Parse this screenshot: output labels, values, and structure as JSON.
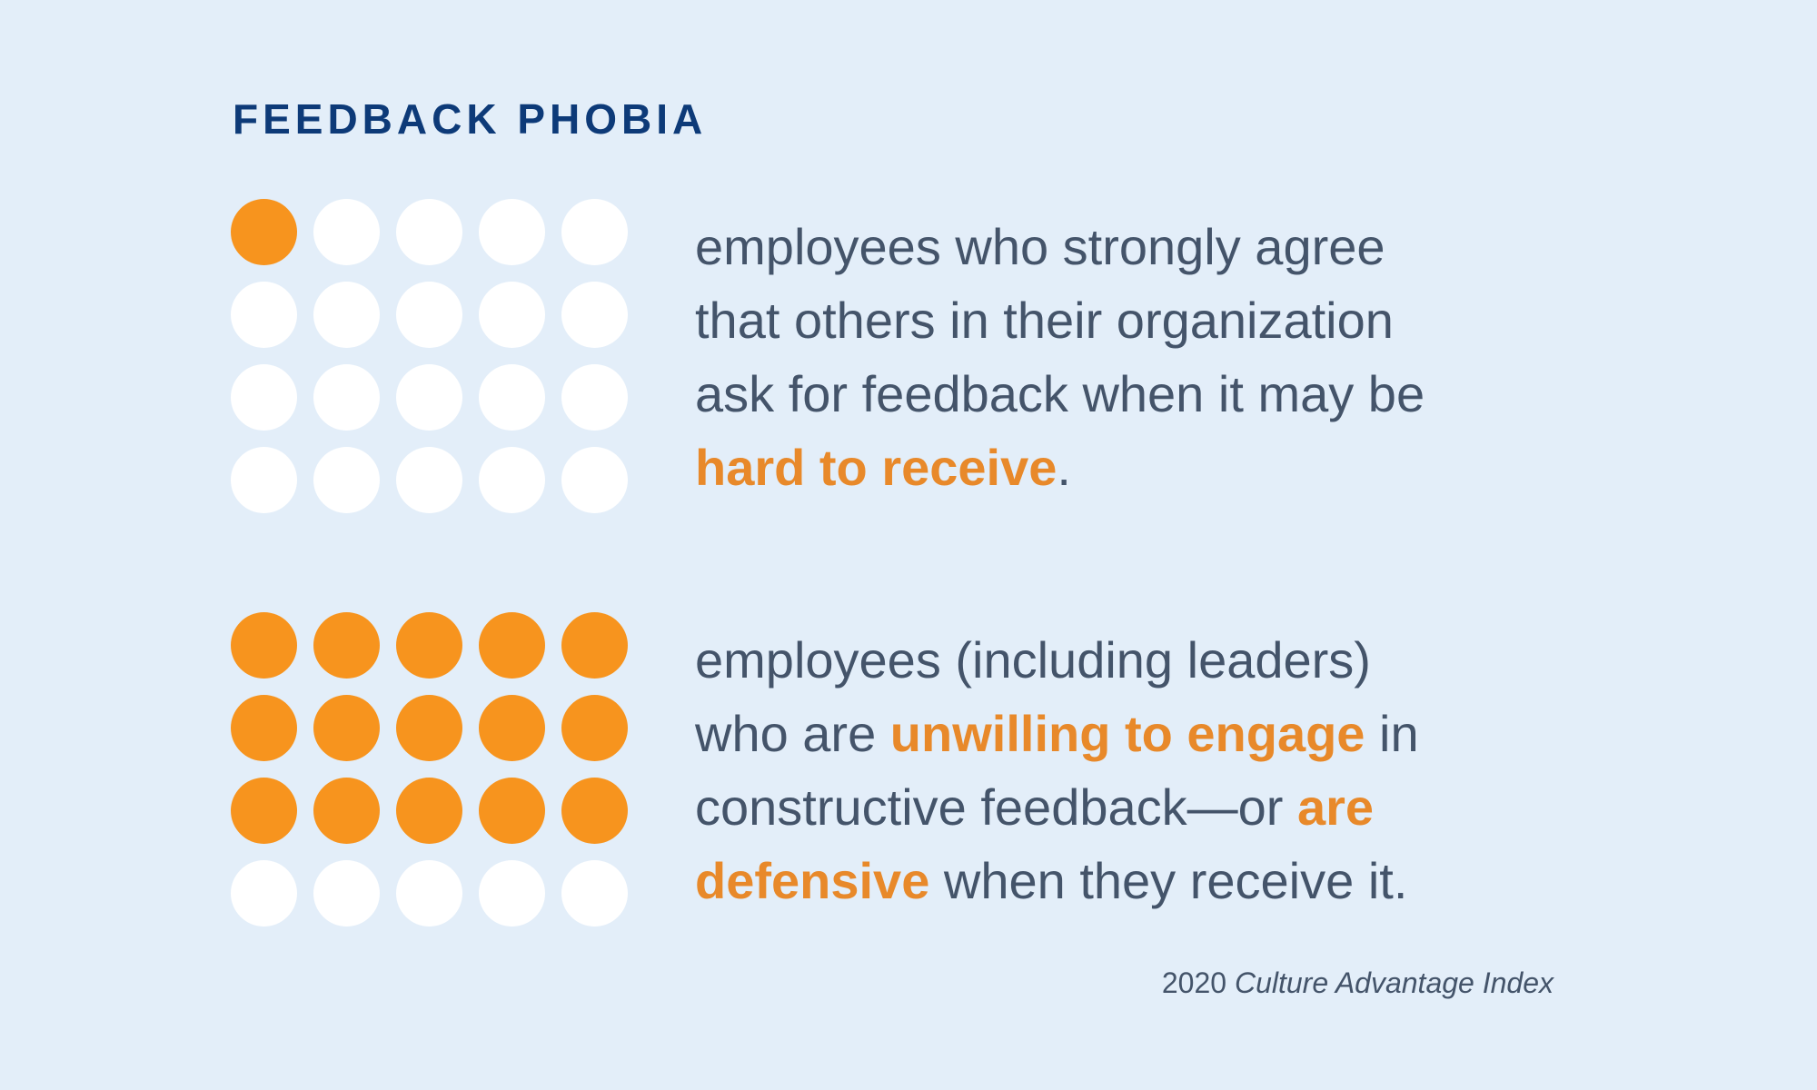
{
  "title": "FEEDBACK PHOBIA",
  "colors": {
    "background": "#e3eef9",
    "title": "#0d3a78",
    "accent": "#f7941e",
    "highlight_text": "#e8892a",
    "body_text": "#44546a",
    "empty_dot": "#ffffff"
  },
  "stats": [
    {
      "filled": 1,
      "total": 20,
      "fraction": 0.05,
      "lines": [
        [
          {
            "t": "employees who strongly agree",
            "hl": false
          }
        ],
        [
          {
            "t": "that others in their organization",
            "hl": false
          }
        ],
        [
          {
            "t": "ask for feedback when it may be",
            "hl": false
          }
        ],
        [
          {
            "t": "hard to receive",
            "hl": true
          },
          {
            "t": ".",
            "hl": false
          }
        ]
      ]
    },
    {
      "filled": 15,
      "total": 20,
      "fraction": 0.75,
      "lines": [
        [
          {
            "t": "employees (including leaders)",
            "hl": false
          }
        ],
        [
          {
            "t": "who are ",
            "hl": false
          },
          {
            "t": "unwilling to engage",
            "hl": true
          },
          {
            "t": " in",
            "hl": false
          }
        ],
        [
          {
            "t": "constructive feedback—or ",
            "hl": false
          },
          {
            "t": "are",
            "hl": true
          }
        ],
        [
          {
            "t": "defensive",
            "hl": true
          },
          {
            "t": " when they receive it.",
            "hl": false
          }
        ]
      ]
    }
  ],
  "source": {
    "year": "2020",
    "name": "Culture Advantage Index"
  }
}
